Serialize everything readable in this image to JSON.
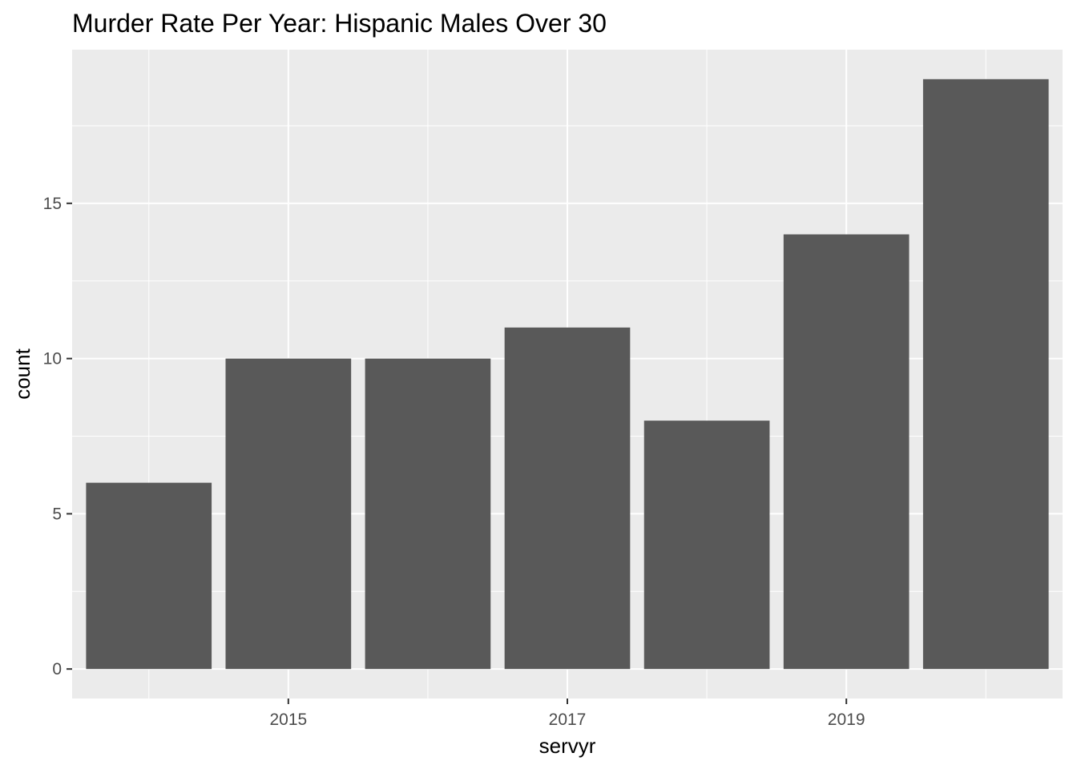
{
  "chart_data": {
    "type": "bar",
    "title": "Murder Rate Per Year: Hispanic Males Over 30",
    "xlabel": "servyr",
    "ylabel": "count",
    "categories": [
      2014,
      2015,
      2016,
      2017,
      2018,
      2019,
      2020
    ],
    "values": [
      6,
      10,
      10,
      11,
      8,
      14,
      19
    ],
    "x_ticks": [
      "2015",
      "2017",
      "2019"
    ],
    "y_ticks": [
      "0",
      "5",
      "10",
      "15"
    ],
    "xlim": [
      2013.45,
      2020.55
    ],
    "ylim": [
      -0.95,
      19.95
    ],
    "grid": true,
    "legend": "none",
    "colors": {
      "bar": "#595959",
      "panel_background": "#ebebeb",
      "grid": "#ffffff",
      "tick_text": "#4d4d4d",
      "tick_mark": "#333333"
    }
  }
}
